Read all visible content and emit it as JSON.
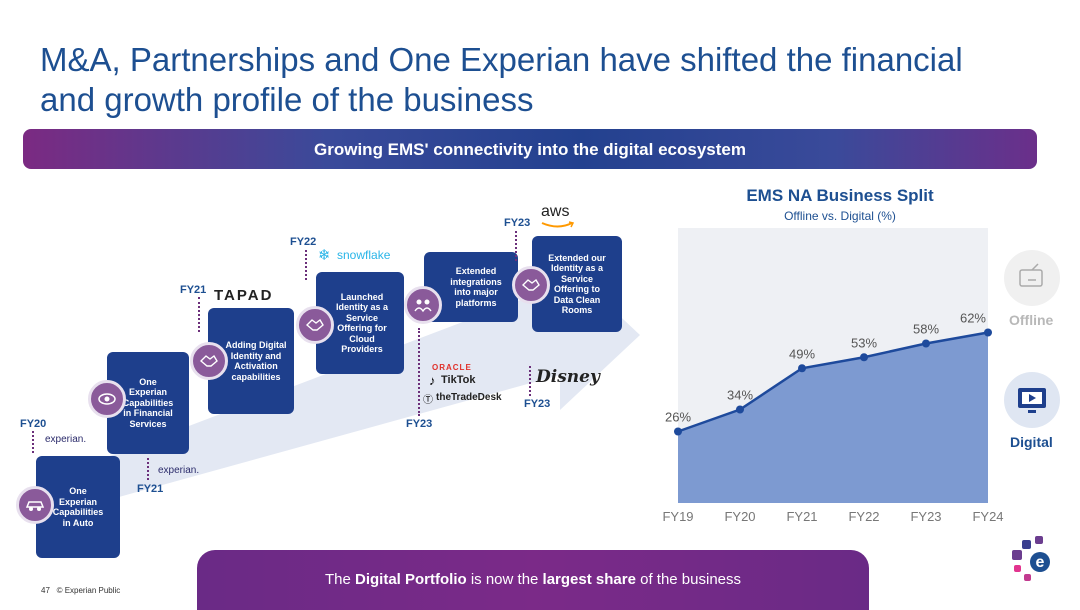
{
  "title": "M&A, Partnerships and One Experian have shifted the financial and growth profile of the business",
  "banner": "Growing EMS' connectivity into the digital ecosystem",
  "timeline": {
    "steps": [
      {
        "year": "FY20",
        "text": [
          "One",
          "Experian",
          "Capabilities",
          "in Auto"
        ],
        "logo": "experian."
      },
      {
        "year": "FY21",
        "text": [
          "One",
          "Experian",
          "Capabilities",
          "in Financial",
          "Services"
        ],
        "logo": "experian."
      },
      {
        "year": "FY21",
        "text": [
          "Adding Digital",
          "Identity and",
          "Activation",
          "capabilities"
        ],
        "logo": "TAPAD"
      },
      {
        "year": "FY22",
        "text": [
          "Launched",
          "Identity as a",
          "Service",
          "Offering for",
          "Cloud",
          "Providers"
        ],
        "logo": "snowflake"
      },
      {
        "year": "FY23",
        "text": [
          "Extended",
          "integrations",
          "into major",
          "platforms"
        ],
        "logos": [
          "ORACLE",
          "TikTok",
          "theTradeDesk"
        ]
      },
      {
        "year": "FY23",
        "text": [
          "Extended our",
          "Identity as a",
          "Service",
          "Offering to",
          "Data Clean",
          "Rooms"
        ],
        "logo": "aws"
      }
    ],
    "extra_year": "FY23",
    "disney_logo": "Disney"
  },
  "legend": {
    "offline": "Offline",
    "digital": "Digital"
  },
  "footer": {
    "pre": "The ",
    "b1": "Digital Portfolio",
    "mid": " is now the ",
    "b2": "largest share",
    "post": " of the business",
    "page": "47",
    "copyright": "© Experian Public"
  },
  "colors": {
    "brand_blue": "#1d4f91",
    "area": "#7d9ad1",
    "line": "#1e4a9c",
    "offline_grey": "#c0c0c0"
  },
  "chart_data": {
    "type": "area",
    "title": "EMS NA Business Split",
    "subtitle": "Offline vs. Digital (%)",
    "categories": [
      "FY19",
      "FY20",
      "FY21",
      "FY22",
      "FY23",
      "FY24"
    ],
    "series": [
      {
        "name": "Digital",
        "values": [
          26,
          34,
          49,
          53,
          58,
          62
        ]
      }
    ],
    "data_labels": [
      "26%",
      "34%",
      "49%",
      "53%",
      "58%",
      "62%"
    ],
    "ylim": [
      0,
      100
    ],
    "grid": false,
    "legend": "right"
  }
}
